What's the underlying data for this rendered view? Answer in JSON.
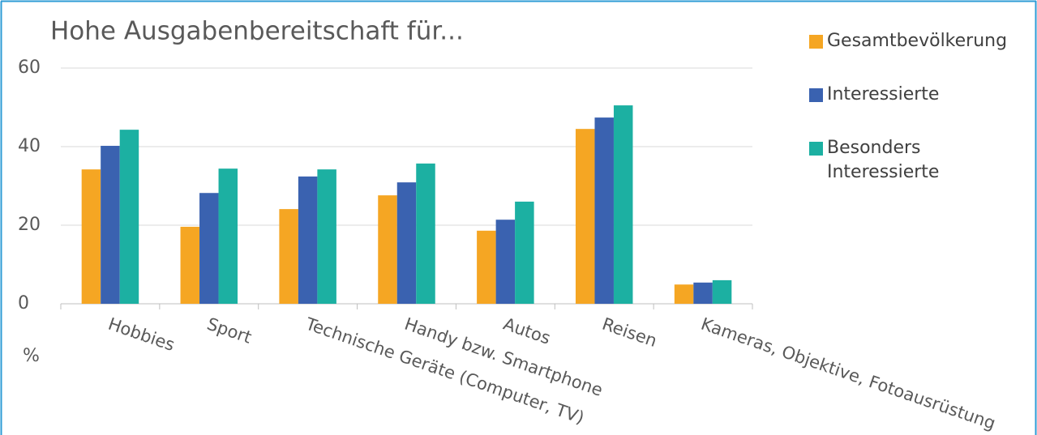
{
  "chart_data": {
    "type": "bar",
    "title": "Hohe Ausgabenbereitschaft für...",
    "y_label": "%",
    "categories": [
      "Hobbies",
      "Sport",
      "Technische Geräte (Computer, TV)",
      "Handy bzw. Smartphone",
      "Autos",
      "Reisen",
      "Kameras, Objektive, Fotoausrüstung"
    ],
    "series": [
      {
        "name": "Gesamtbevölkerung",
        "color": "#f5a623",
        "values": [
          34.2,
          19.6,
          24.1,
          27.6,
          18.6,
          44.5,
          4.9
        ]
      },
      {
        "name": "Interessierte",
        "color": "#3a62b0",
        "values": [
          40.2,
          28.2,
          32.4,
          30.9,
          21.4,
          47.4,
          5.4
        ]
      },
      {
        "name": "Besonders Interessierte",
        "color": "#1cb0a2",
        "values": [
          44.3,
          34.4,
          34.2,
          35.7,
          26.0,
          50.5,
          6.0
        ]
      }
    ],
    "ylim": [
      0,
      60
    ],
    "yticks": [
      0,
      20,
      40,
      60
    ],
    "grid": true,
    "legend": "right"
  }
}
